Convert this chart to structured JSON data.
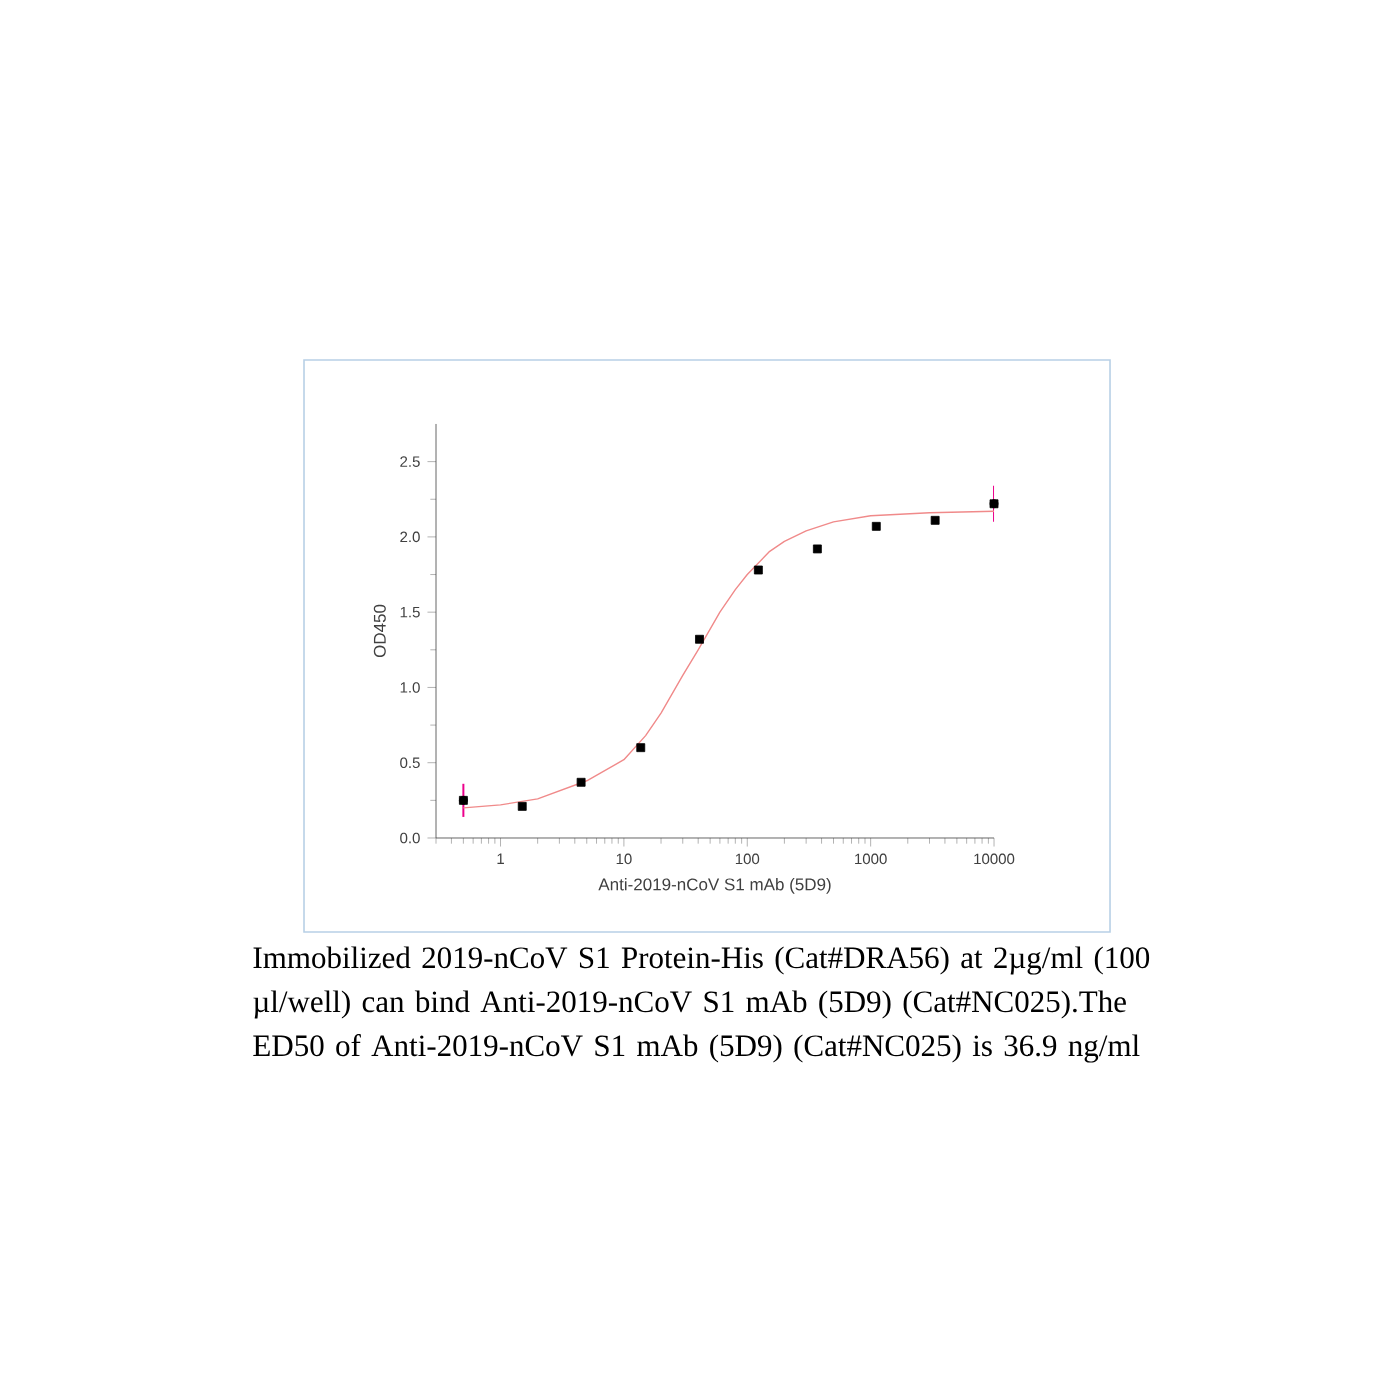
{
  "chart_data": {
    "type": "scatter",
    "xlabel": "Anti-2019-nCoV S1 mAb (5D9)",
    "ylabel": "OD450",
    "log": "x",
    "xlim": [
      0.3,
      10000
    ],
    "xticks": [
      1,
      10,
      100,
      1000,
      10000
    ],
    "ylim": [
      0,
      2.75
    ],
    "yticks": [
      {
        "value": 0,
        "label": "0.0"
      },
      0.5,
      {
        "value": 1,
        "label": "1.0"
      },
      1.5,
      {
        "value": 2,
        "label": "2.0"
      },
      2.5
    ],
    "marker": "square",
    "grid": false,
    "annotations": [
      "Immobilized 2019-nCoV S1 Protein-His (Cat#DRA56) at 2µg/ml (100 µl/well) can bind Anti-2019-nCoV S1 mAb (5D9) (Cat#NC025).The ED50 of Anti-2019-nCoV S1 mAb (5D9) (Cat#NC025) is 36.9 ng/ml"
    ],
    "series": [
      {
        "color": "#000000",
        "x": [
          0.5,
          1.5,
          4.5,
          13.7,
          41,
          123,
          370,
          1111,
          3333,
          10000
        ],
        "values": [
          0.25,
          0.21,
          0.37,
          0.6,
          1.32,
          1.78,
          1.92,
          2.07,
          2.11,
          2.22
        ],
        "errors": [
          0.11,
          null,
          null,
          null,
          null,
          null,
          null,
          null,
          null,
          0.12
        ]
      },
      {
        "type": "line",
        "marker": "none",
        "color": "#f08a8a",
        "x": [
          0.5,
          1,
          2,
          5,
          10,
          15,
          20,
          30,
          40,
          60,
          80,
          100,
          150,
          200,
          300,
          500,
          1000,
          3000,
          10000
        ],
        "values": [
          0.2,
          0.22,
          0.26,
          0.38,
          0.52,
          0.68,
          0.83,
          1.08,
          1.25,
          1.5,
          1.65,
          1.75,
          1.9,
          1.97,
          2.04,
          2.1,
          2.14,
          2.16,
          2.17
        ]
      }
    ]
  }
}
